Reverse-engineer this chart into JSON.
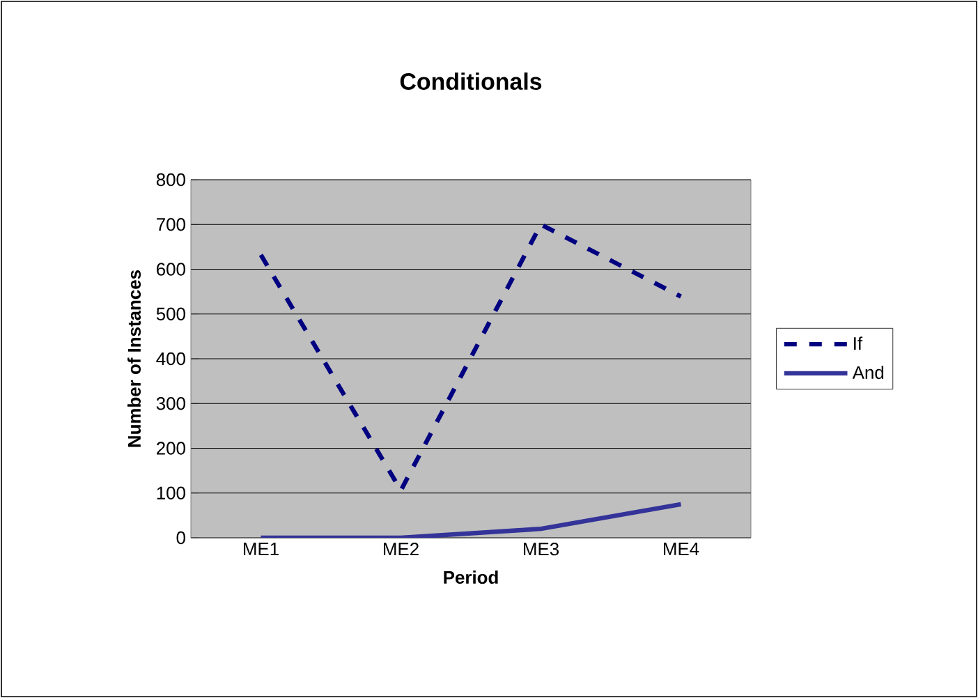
{
  "chart_data": {
    "type": "line",
    "title": "Conditionals",
    "xlabel": "Period",
    "ylabel": "Number of Instances",
    "categories": [
      "ME1",
      "ME2",
      "ME3",
      "ME4"
    ],
    "series": [
      {
        "name": "If",
        "color": "#000080",
        "line_style": "dashed",
        "values": [
          632,
          106,
          700,
          539
        ]
      },
      {
        "name": "And",
        "color": "#333399",
        "line_style": "solid",
        "values": [
          0,
          0,
          20,
          75
        ]
      }
    ],
    "ylim": [
      0,
      800
    ],
    "yticks": [
      0,
      100,
      200,
      300,
      400,
      500,
      600,
      700,
      800
    ],
    "grid": "y",
    "legend": "right",
    "marker": "none"
  }
}
